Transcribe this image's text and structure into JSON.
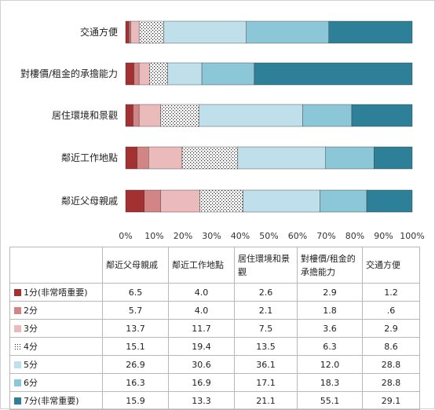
{
  "chart_data": {
    "type": "bar",
    "orientation": "horizontal",
    "stacked": "percent",
    "categories": [
      "交通方便",
      "對樓價/租金的承擔能力",
      "居住環境和景觀",
      "鄰近工作地點",
      "鄰近父母親戚"
    ],
    "xticks": [
      "0%",
      "10%",
      "20%",
      "30%",
      "40%",
      "50%",
      "60%",
      "70%",
      "80%",
      "90%",
      "100%"
    ],
    "xlim": [
      0,
      100
    ],
    "grid": false,
    "series": [
      {
        "name": "1分(非常唔重要)",
        "color": "#a33131",
        "values": [
          1.2,
          2.9,
          2.6,
          4.0,
          6.5
        ]
      },
      {
        "name": "2分",
        "color": "#d38585",
        "values": [
          0.6,
          1.8,
          2.1,
          4.0,
          5.7
        ]
      },
      {
        "name": "3分",
        "color": "#ebbaba",
        "values": [
          2.9,
          3.6,
          7.5,
          11.7,
          13.7
        ]
      },
      {
        "name": "4分",
        "color": "#ffffff",
        "pattern": "dots",
        "values": [
          8.6,
          6.3,
          13.5,
          19.4,
          15.1
        ]
      },
      {
        "name": "5分",
        "color": "#bfe0ea",
        "values": [
          28.8,
          12.0,
          36.1,
          30.6,
          26.9
        ]
      },
      {
        "name": "6分",
        "color": "#8cc7d8",
        "values": [
          28.8,
          18.3,
          17.1,
          16.9,
          16.3
        ]
      },
      {
        "name": "7分(非常重要)",
        "color": "#2e7f98",
        "values": [
          29.1,
          55.1,
          21.1,
          13.3,
          15.9
        ]
      }
    ]
  },
  "table": {
    "columns": [
      "鄰近父母親戚",
      "鄰近工作地點",
      "居住環境和景觀",
      "對樓價/租金的承擔能力",
      "交通方便"
    ],
    "rows": [
      {
        "label": "1分(非常唔重要)",
        "values": [
          "6.5",
          "4.0",
          "2.6",
          "2.9",
          "1.2"
        ]
      },
      {
        "label": "2分",
        "values": [
          "5.7",
          "4.0",
          "2.1",
          "1.8",
          ".6"
        ]
      },
      {
        "label": "3分",
        "values": [
          "13.7",
          "11.7",
          "7.5",
          "3.6",
          "2.9"
        ]
      },
      {
        "label": "4分",
        "values": [
          "15.1",
          "19.4",
          "13.5",
          "6.3",
          "8.6"
        ]
      },
      {
        "label": "5分",
        "values": [
          "26.9",
          "30.6",
          "36.1",
          "12.0",
          "28.8"
        ]
      },
      {
        "label": "6分",
        "values": [
          "16.3",
          "16.9",
          "17.1",
          "18.3",
          "28.8"
        ]
      },
      {
        "label": "7分(非常重要)",
        "values": [
          "15.9",
          "13.3",
          "21.1",
          "55.1",
          "29.1"
        ]
      }
    ]
  }
}
